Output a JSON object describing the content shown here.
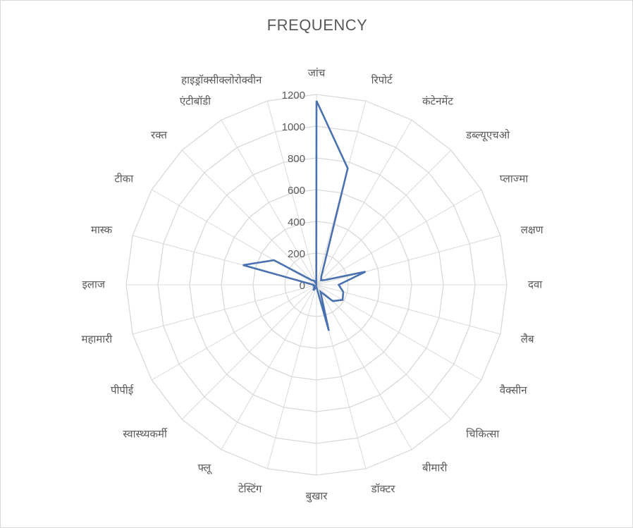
{
  "chart_data": {
    "type": "radar",
    "title": "FREQUENCY",
    "categories": [
      "जांच",
      "रिपोर्ट",
      "कंटेनमेंट",
      "डब्ल्यूएचओ",
      "प्लाज्मा",
      "लक्षण",
      "दवा",
      "लैब",
      "वैक्सीन",
      "चिकित्सा",
      "बीमारी",
      "डॉक्टर",
      "बुखार",
      "टेस्टिंग",
      "फ्लू",
      "स्वास्थ्यकर्मी",
      "पीपीई",
      "महामारी",
      "इलाज",
      "मास्क",
      "टीका",
      "रक्त",
      "एंटीबॉडी",
      "हाइड्रॉक्सीक्लोरोक्वीन"
    ],
    "series": [
      {
        "values": [
          1160,
          760,
          60,
          40,
          60,
          320,
          140,
          175,
          190,
          145,
          50,
          300,
          15,
          20,
          40,
          20,
          10,
          20,
          20,
          480,
          310,
          40,
          30,
          5
        ]
      }
    ],
    "ticks": [
      "0",
      "200",
      "400",
      "600",
      "800",
      "1000",
      "1200"
    ],
    "rmax": 1200,
    "grid": true,
    "series_color": "#4a72b0"
  }
}
